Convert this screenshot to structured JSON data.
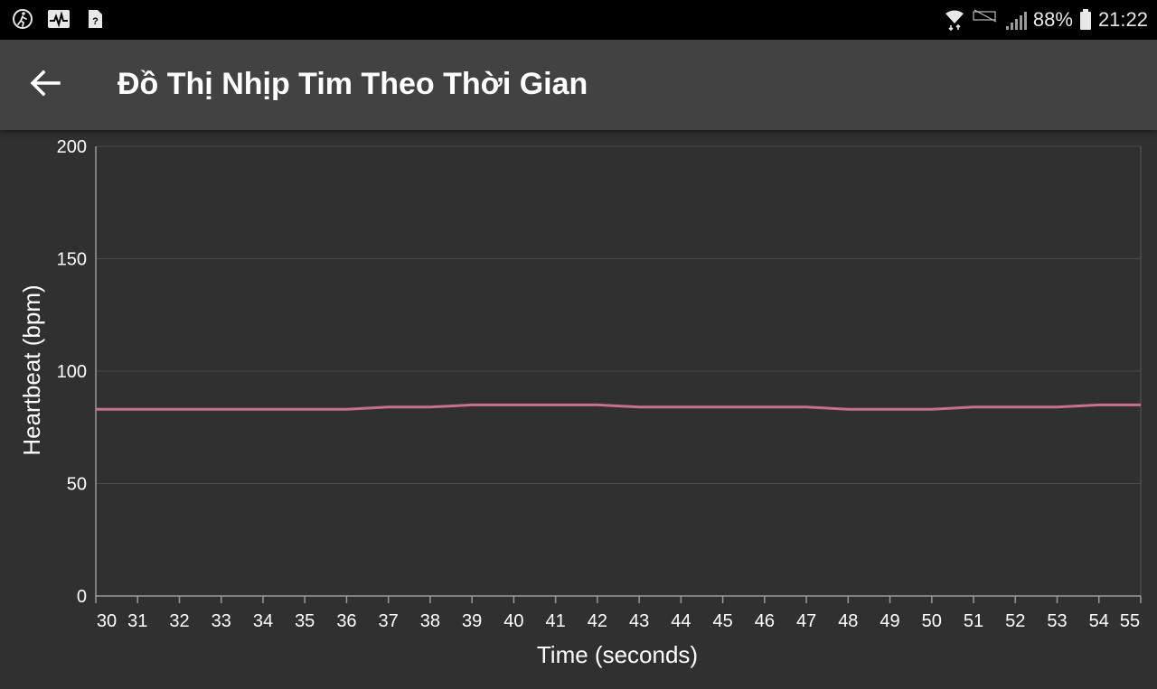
{
  "status_bar": {
    "left_icons": [
      "running-figure-icon",
      "activity-monitor-icon",
      "unknown-file-icon"
    ],
    "right_icons": [
      "wifi-arrows-icon",
      "no-sim-icon",
      "signal-bars-icon",
      "battery-icon"
    ],
    "battery_percent": "88%",
    "time": "21:22"
  },
  "app_bar": {
    "title": "Đồ Thị Nhịp Tim Theo Thời Gian",
    "back_icon": "arrow-left-icon"
  },
  "colors": {
    "background": "#303030",
    "app_bar": "#424242",
    "status_bar": "#000000",
    "line": "#c9708f",
    "grid": "#4a4a52",
    "text": "#ffffff"
  },
  "chart_data": {
    "type": "line",
    "xlabel": "Time (seconds)",
    "ylabel": "Heartbeat (bpm)",
    "xlim": [
      30,
      55
    ],
    "ylim": [
      0,
      200
    ],
    "y_ticks": [
      0,
      50,
      100,
      150,
      200
    ],
    "x_ticks": [
      30,
      31,
      32,
      33,
      34,
      35,
      36,
      37,
      38,
      39,
      40,
      41,
      42,
      43,
      44,
      45,
      46,
      47,
      48,
      49,
      50,
      51,
      52,
      53,
      54,
      55
    ],
    "grid": "horizontal",
    "series": [
      {
        "x": [
          30,
          31,
          32,
          33,
          34,
          35,
          36,
          37,
          38,
          39,
          40,
          41,
          42,
          43,
          44,
          45,
          46,
          47,
          48,
          49,
          50,
          51,
          52,
          53,
          54,
          55
        ],
        "y": [
          83,
          83,
          83,
          83,
          83,
          83,
          83,
          84,
          84,
          85,
          85,
          85,
          85,
          84,
          84,
          84,
          84,
          84,
          83,
          83,
          83,
          84,
          84,
          84,
          85,
          85
        ]
      }
    ]
  }
}
